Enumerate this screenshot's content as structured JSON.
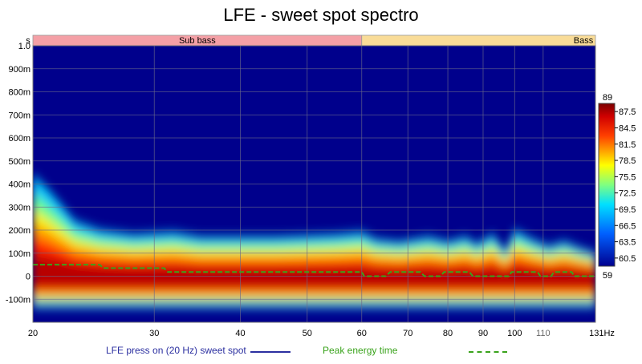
{
  "chart_data": {
    "type": "heatmap",
    "title": "LFE - sweet spot spectro",
    "x_unit": "Hz",
    "y_unit": "s",
    "x_scale": "log",
    "xlim": [
      20,
      131
    ],
    "ylim": [
      -0.2,
      1.0
    ],
    "x_ticks": [
      {
        "value": 20,
        "label": "20"
      },
      {
        "value": 30,
        "label": "30"
      },
      {
        "value": 40,
        "label": "40"
      },
      {
        "value": 50,
        "label": "50"
      },
      {
        "value": 60,
        "label": "60"
      },
      {
        "value": 70,
        "label": "70"
      },
      {
        "value": 80,
        "label": "80"
      },
      {
        "value": 90,
        "label": "90"
      },
      {
        "value": 100,
        "label": "100"
      },
      {
        "value": 110,
        "label": "110"
      },
      {
        "value": 131,
        "label": "131Hz"
      }
    ],
    "y_ticks": [
      {
        "value": 1.0,
        "label": "1.0"
      },
      {
        "value": 0.9,
        "label": "900m"
      },
      {
        "value": 0.8,
        "label": "800m"
      },
      {
        "value": 0.7,
        "label": "700m"
      },
      {
        "value": 0.6,
        "label": "600m"
      },
      {
        "value": 0.5,
        "label": "500m"
      },
      {
        "value": 0.4,
        "label": "400m"
      },
      {
        "value": 0.3,
        "label": "300m"
      },
      {
        "value": 0.2,
        "label": "200m"
      },
      {
        "value": 0.1,
        "label": "100m"
      },
      {
        "value": 0.0,
        "label": "0"
      },
      {
        "value": -0.1,
        "label": "-100m"
      }
    ],
    "bands": [
      {
        "label": "Sub bass",
        "from": 20,
        "to": 60,
        "color": "#f4a0a6"
      },
      {
        "label": "Bass",
        "from": 60,
        "to": 131,
        "color": "#f9dc98"
      }
    ],
    "colorbar": {
      "min": 59,
      "max": 89,
      "ticks": [
        87.5,
        84.5,
        81.5,
        78.5,
        75.5,
        72.5,
        69.5,
        66.5,
        63.5,
        60.5
      ],
      "max_label": "89",
      "min_label": "59"
    },
    "decay_profile": [
      {
        "x": 20,
        "top": 0.44
      },
      {
        "x": 21,
        "top": 0.38
      },
      {
        "x": 22,
        "top": 0.31
      },
      {
        "x": 23,
        "top": 0.24
      },
      {
        "x": 25,
        "top": 0.2
      },
      {
        "x": 28,
        "top": 0.18
      },
      {
        "x": 32,
        "top": 0.19
      },
      {
        "x": 35,
        "top": 0.17
      },
      {
        "x": 45,
        "top": 0.17
      },
      {
        "x": 55,
        "top": 0.18
      },
      {
        "x": 60,
        "top": 0.19
      },
      {
        "x": 63,
        "top": 0.16
      },
      {
        "x": 68,
        "top": 0.15
      },
      {
        "x": 75,
        "top": 0.17
      },
      {
        "x": 80,
        "top": 0.15
      },
      {
        "x": 85,
        "top": 0.17
      },
      {
        "x": 88,
        "top": 0.14
      },
      {
        "x": 93,
        "top": 0.18
      },
      {
        "x": 97,
        "top": 0.11
      },
      {
        "x": 100,
        "top": 0.2
      },
      {
        "x": 106,
        "top": 0.16
      },
      {
        "x": 112,
        "top": 0.13
      },
      {
        "x": 118,
        "top": 0.15
      },
      {
        "x": 125,
        "top": 0.12
      },
      {
        "x": 131,
        "top": 0.1
      }
    ],
    "series": [
      {
        "name": "LFE press on (20 Hz) sweet spot",
        "color": "#2b2fa0",
        "style": "solid"
      },
      {
        "name": "Peak energy time",
        "color": "#3aa31c",
        "style": "dashed",
        "points": [
          [
            20,
            0.05
          ],
          [
            25,
            0.05
          ],
          [
            25.3,
            0.035
          ],
          [
            31,
            0.035
          ],
          [
            31.4,
            0.018
          ],
          [
            60,
            0.018
          ],
          [
            60.5,
            0.0
          ],
          [
            65,
            0.0
          ],
          [
            66,
            0.018
          ],
          [
            73,
            0.018
          ],
          [
            74,
            0.0
          ],
          [
            78,
            0.0
          ],
          [
            79,
            0.018
          ],
          [
            86,
            0.018
          ],
          [
            87,
            0.0
          ],
          [
            98,
            0.0
          ],
          [
            99,
            0.018
          ],
          [
            108,
            0.018
          ],
          [
            109,
            0.0
          ],
          [
            113,
            0.0
          ],
          [
            114,
            0.018
          ],
          [
            121,
            0.018
          ],
          [
            122,
            0.0
          ],
          [
            131,
            0.0
          ]
        ]
      }
    ],
    "legend_position": "bottom"
  }
}
